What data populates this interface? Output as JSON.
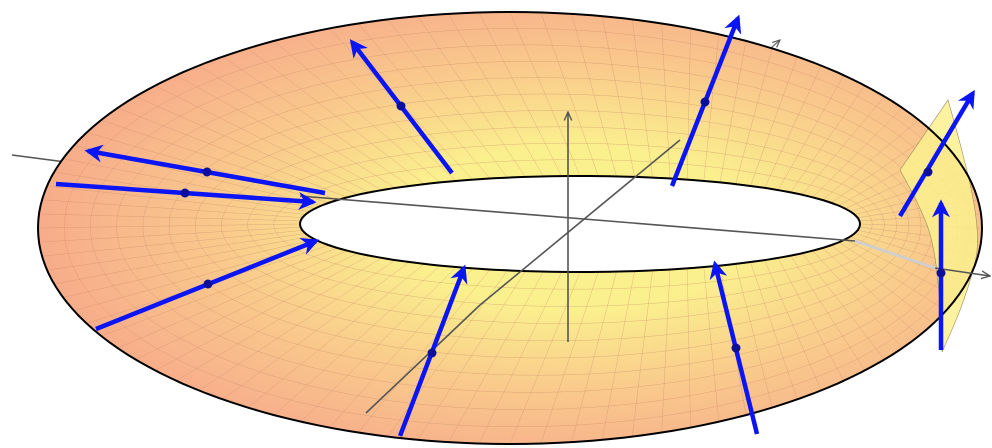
{
  "figure": {
    "kind": "mobius-strip-surface",
    "colors": {
      "surface_outer": "#f6a48a",
      "surface_inner": "#fbf08e",
      "surface_mid": "#f9c88c",
      "mesh": "#c9896a",
      "edge": "#000000",
      "axis": "#555555",
      "vector": "#0a14f5",
      "vector_point": "#0b0f9a",
      "background": "#ffffff"
    },
    "axes": [
      "x",
      "y",
      "z"
    ],
    "normal_vector_count": 10
  }
}
